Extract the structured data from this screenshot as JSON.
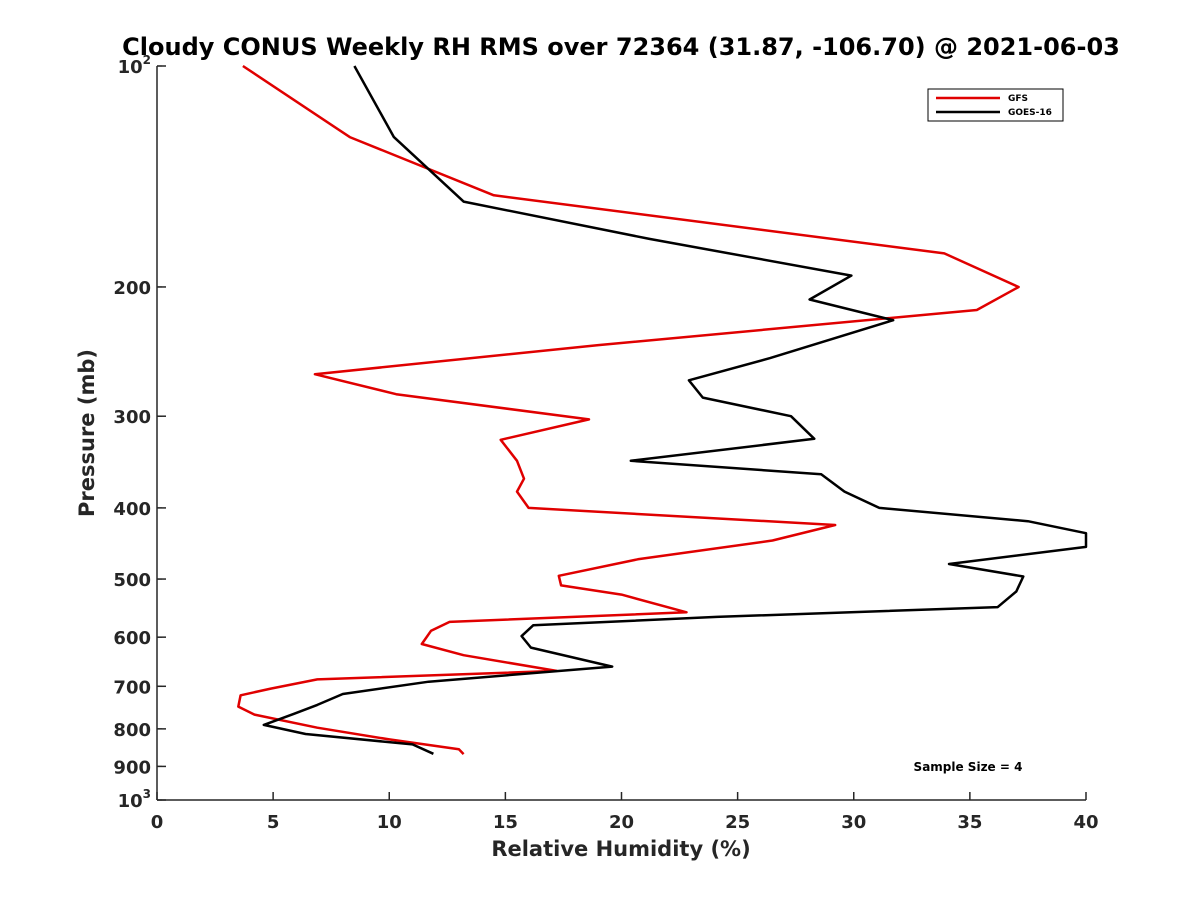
{
  "chart_data": {
    "type": "line",
    "title": "Cloudy CONUS Weekly RH RMS over 72364 (31.87, -106.70) @ 2021-06-03",
    "xlabel": "Relative Humidity (%)",
    "ylabel": "Pressure (mb)",
    "xlim": [
      0,
      40
    ],
    "ylim": [
      100,
      1000
    ],
    "y_scale": "log",
    "y_reversed": true,
    "x_ticks": [
      "0",
      "5",
      "10",
      "15",
      "20",
      "25",
      "30",
      "35",
      "40"
    ],
    "y_ticks": [
      {
        "value": 100,
        "base": "10",
        "exp": "2"
      },
      {
        "value": 200,
        "label": "200"
      },
      {
        "value": 300,
        "label": "300"
      },
      {
        "value": 400,
        "label": "400"
      },
      {
        "value": 500,
        "label": "500"
      },
      {
        "value": 600,
        "label": "600"
      },
      {
        "value": 700,
        "label": "700"
      },
      {
        "value": 800,
        "label": "800"
      },
      {
        "value": 900,
        "label": "900"
      },
      {
        "value": 1000,
        "base": "10",
        "exp": "3"
      }
    ],
    "grid": false,
    "legend_position": "top-right",
    "annotation": "Sample Size = 4",
    "series": [
      {
        "name": "GFS",
        "color": "#e00000",
        "points": [
          [
            3.7,
            100
          ],
          [
            8.3,
            125
          ],
          [
            14.5,
            150
          ],
          [
            33.9,
            180
          ],
          [
            37.1,
            200
          ],
          [
            35.3,
            215
          ],
          [
            19.0,
            240
          ],
          [
            6.8,
            263
          ],
          [
            10.3,
            280
          ],
          [
            18.6,
            303
          ],
          [
            14.8,
            323
          ],
          [
            15.5,
            345
          ],
          [
            15.8,
            365
          ],
          [
            15.5,
            380
          ],
          [
            16.0,
            400
          ],
          [
            29.2,
            422
          ],
          [
            26.5,
            443
          ],
          [
            20.7,
            470
          ],
          [
            17.3,
            495
          ],
          [
            17.4,
            510
          ],
          [
            20.0,
            525
          ],
          [
            22.8,
            555
          ],
          [
            12.6,
            572
          ],
          [
            11.8,
            588
          ],
          [
            11.4,
            613
          ],
          [
            13.2,
            635
          ],
          [
            17.2,
            667
          ],
          [
            6.9,
            685
          ],
          [
            4.9,
            705
          ],
          [
            3.6,
            720
          ],
          [
            3.5,
            746
          ],
          [
            4.2,
            765
          ],
          [
            6.9,
            797
          ],
          [
            10.0,
            827
          ],
          [
            13.0,
            853
          ],
          [
            13.2,
            866
          ]
        ]
      },
      {
        "name": "GOES-16",
        "color": "#000000",
        "points": [
          [
            8.5,
            100
          ],
          [
            10.2,
            125
          ],
          [
            13.2,
            153
          ],
          [
            21.2,
            172
          ],
          [
            29.9,
            193
          ],
          [
            28.1,
            208
          ],
          [
            31.7,
            222
          ],
          [
            26.4,
            250
          ],
          [
            22.9,
            268
          ],
          [
            23.5,
            283
          ],
          [
            27.3,
            300
          ],
          [
            28.3,
            322
          ],
          [
            20.4,
            345
          ],
          [
            28.6,
            360
          ],
          [
            29.6,
            380
          ],
          [
            31.1,
            400
          ],
          [
            37.5,
            417
          ],
          [
            40.0,
            433
          ],
          [
            40.0,
            452
          ],
          [
            34.1,
            477
          ],
          [
            37.3,
            496
          ],
          [
            37.0,
            520
          ],
          [
            36.2,
            546
          ],
          [
            24.1,
            563
          ],
          [
            16.2,
            578
          ],
          [
            15.7,
            598
          ],
          [
            16.1,
            620
          ],
          [
            19.6,
            658
          ],
          [
            11.7,
            690
          ],
          [
            8.0,
            717
          ],
          [
            6.9,
            742
          ],
          [
            5.9,
            763
          ],
          [
            4.6,
            790
          ],
          [
            6.4,
            813
          ],
          [
            11.0,
            840
          ],
          [
            11.9,
            865
          ]
        ]
      }
    ]
  }
}
